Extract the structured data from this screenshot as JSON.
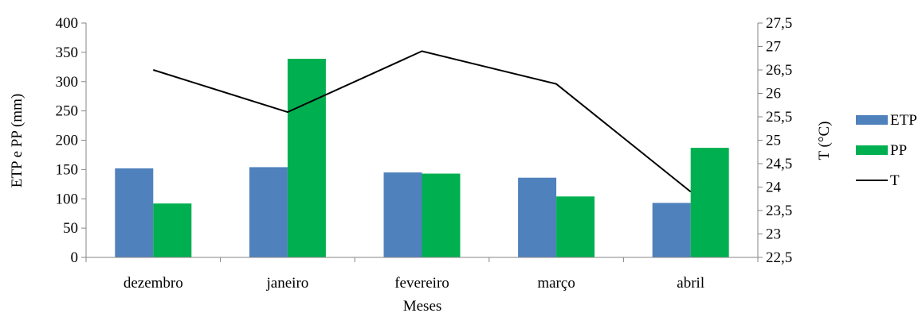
{
  "chart_data": {
    "type": "bar",
    "categories": [
      "dezembro",
      "janeiro",
      "fevereiro",
      "março",
      "abril"
    ],
    "xlabel": "Meses",
    "ylabel": "ETP e PP (mm)",
    "y2label": "T (°C)",
    "ylim": [
      0,
      400
    ],
    "yticks": [
      "0",
      "50",
      "100",
      "150",
      "200",
      "250",
      "300",
      "350",
      "400"
    ],
    "y2lim": [
      22.5,
      27.5
    ],
    "y2ticks": [
      "22,5",
      "23",
      "23,5",
      "24",
      "24,5",
      "25",
      "25,5",
      "26",
      "26,5",
      "27",
      "27,5"
    ],
    "series": [
      {
        "name": "ETP",
        "kind": "bar",
        "axis": "left",
        "color": "#4F81BD",
        "values": [
          152,
          154,
          145,
          136,
          93
        ]
      },
      {
        "name": "PP",
        "kind": "bar",
        "axis": "left",
        "color": "#00B050",
        "values": [
          92,
          339,
          143,
          104,
          187
        ]
      },
      {
        "name": "T",
        "kind": "line",
        "axis": "right",
        "color": "#000000",
        "values": [
          26.5,
          25.6,
          26.9,
          26.2,
          23.9
        ]
      }
    ],
    "legend": "right",
    "grid": false
  }
}
